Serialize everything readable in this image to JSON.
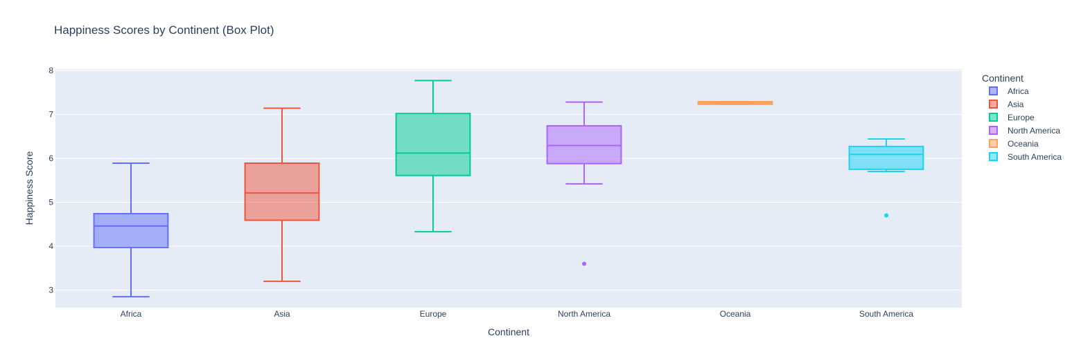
{
  "chart_data": {
    "type": "box",
    "title": "Happiness Scores by Continent (Box Plot)",
    "xlabel": "Continent",
    "ylabel": "Happiness Score",
    "ylim": [
      2.6,
      8.03
    ],
    "yticks": [
      3,
      4,
      5,
      6,
      7,
      8
    ],
    "grid": true,
    "legend": {
      "title": "Continent",
      "placement": "right"
    },
    "series": [
      {
        "name": "Africa",
        "color": "#636efa",
        "lower_fence": 2.85,
        "q1": 3.97,
        "median": 4.46,
        "q3": 4.74,
        "upper_fence": 5.89,
        "outliers": []
      },
      {
        "name": "Asia",
        "color": "#ef553b",
        "lower_fence": 3.2,
        "q1": 4.59,
        "median": 5.21,
        "q3": 5.89,
        "upper_fence": 7.14,
        "outliers": []
      },
      {
        "name": "Europe",
        "color": "#00cc96",
        "lower_fence": 4.33,
        "q1": 5.61,
        "median": 6.12,
        "q3": 7.02,
        "upper_fence": 7.77,
        "outliers": []
      },
      {
        "name": "North America",
        "color": "#ab63fa",
        "lower_fence": 5.42,
        "q1": 5.88,
        "median": 6.29,
        "q3": 6.74,
        "upper_fence": 7.28,
        "outliers": [
          3.6
        ]
      },
      {
        "name": "Oceania",
        "color": "#ffa15a",
        "lower_fence": 7.23,
        "q1": 7.23,
        "median": 7.26,
        "q3": 7.29,
        "upper_fence": 7.29,
        "outliers": []
      },
      {
        "name": "South America",
        "color": "#19d3f3",
        "lower_fence": 5.7,
        "q1": 5.75,
        "median": 6.09,
        "q3": 6.27,
        "upper_fence": 6.44,
        "outliers": [
          4.7
        ]
      }
    ]
  }
}
